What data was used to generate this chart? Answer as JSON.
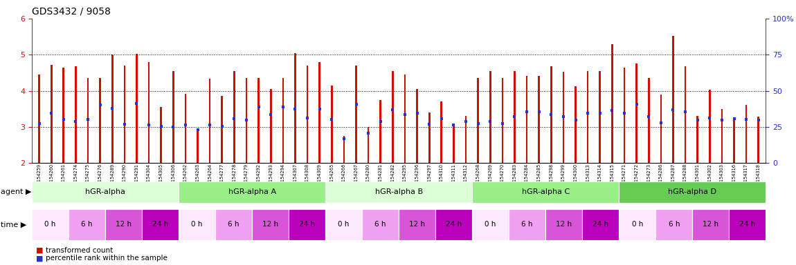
{
  "title": "GDS3432 / 9058",
  "bar_bottom": 2.0,
  "ylim": [
    2.0,
    6.0
  ],
  "yticks": [
    2,
    3,
    4,
    5,
    6
  ],
  "right_yticks_pct": [
    0,
    25,
    50,
    75,
    100
  ],
  "right_ytick_labels": [
    "0",
    "25",
    "50",
    "75",
    "100%"
  ],
  "samples": [
    "GSM154259",
    "GSM154260",
    "GSM154261",
    "GSM154274",
    "GSM154275",
    "GSM154276",
    "GSM154289",
    "GSM154290",
    "GSM154291",
    "GSM154304",
    "GSM154305",
    "GSM154306",
    "GSM154262",
    "GSM154263",
    "GSM154264",
    "GSM154277",
    "GSM154278",
    "GSM154279",
    "GSM154292",
    "GSM154293",
    "GSM154294",
    "GSM154307",
    "GSM154308",
    "GSM154309",
    "GSM154265",
    "GSM154266",
    "GSM154267",
    "GSM154280",
    "GSM154281",
    "GSM154282",
    "GSM154295",
    "GSM154296",
    "GSM154297",
    "GSM154310",
    "GSM154311",
    "GSM154312",
    "GSM154268",
    "GSM154269",
    "GSM154270",
    "GSM154283",
    "GSM154284",
    "GSM154285",
    "GSM154298",
    "GSM154299",
    "GSM154300",
    "GSM154313",
    "GSM154314",
    "GSM154315",
    "GSM154271",
    "GSM154272",
    "GSM154273",
    "GSM154286",
    "GSM154287",
    "GSM154288",
    "GSM154301",
    "GSM154302",
    "GSM154303",
    "GSM154316",
    "GSM154317",
    "GSM154318"
  ],
  "bar_heights": [
    4.45,
    4.72,
    4.65,
    4.68,
    4.35,
    4.35,
    5.0,
    4.7,
    5.02,
    4.8,
    3.55,
    4.55,
    3.92,
    2.92,
    4.33,
    3.85,
    4.55,
    4.35,
    4.35,
    4.05,
    4.35,
    5.05,
    4.7,
    4.8,
    4.15,
    2.75,
    4.7,
    3.0,
    3.75,
    4.55,
    4.45,
    4.05,
    3.4,
    3.7,
    3.1,
    3.3,
    4.35,
    4.55,
    4.35,
    4.55,
    4.42,
    4.42,
    4.68,
    4.52,
    4.12,
    4.55,
    4.55,
    5.3,
    4.65,
    4.75,
    4.35,
    3.9,
    5.52,
    4.68,
    3.3,
    4.02,
    3.5,
    3.25,
    3.6,
    3.28
  ],
  "blue_dots": [
    3.1,
    3.38,
    3.2,
    3.15,
    3.2,
    3.6,
    3.52,
    3.08,
    3.65,
    3.05,
    3.02,
    3.0,
    3.05,
    2.92,
    3.05,
    3.02,
    3.22,
    3.18,
    3.55,
    3.35,
    3.55,
    3.5,
    3.25,
    3.5,
    3.2,
    2.68,
    3.62,
    2.82,
    3.15,
    3.48,
    3.35,
    3.38,
    3.08,
    3.22,
    3.05,
    3.15,
    3.1,
    3.15,
    3.1,
    3.28,
    3.42,
    3.42,
    3.35,
    3.28,
    3.18,
    3.38,
    3.38,
    3.45,
    3.38,
    3.62,
    3.28,
    3.12,
    3.48,
    3.42,
    3.18,
    3.25,
    3.18,
    3.22,
    3.2,
    3.18
  ],
  "agents": [
    {
      "label": "hGR-alpha",
      "start": 0,
      "end": 12,
      "color": "#ddffd8"
    },
    {
      "label": "hGR-alpha A",
      "start": 12,
      "end": 24,
      "color": "#99ee88"
    },
    {
      "label": "hGR-alpha B",
      "start": 24,
      "end": 36,
      "color": "#ddffd8"
    },
    {
      "label": "hGR-alpha C",
      "start": 36,
      "end": 48,
      "color": "#99ee88"
    },
    {
      "label": "hGR-alpha D",
      "start": 48,
      "end": 60,
      "color": "#66cc55"
    }
  ],
  "times": [
    {
      "label": "0 h",
      "shade": 0
    },
    {
      "label": "6 h",
      "shade": 1
    },
    {
      "label": "12 h",
      "shade": 2
    },
    {
      "label": "24 h",
      "shade": 3
    },
    {
      "label": "0 h",
      "shade": 0
    },
    {
      "label": "6 h",
      "shade": 1
    },
    {
      "label": "12 h",
      "shade": 2
    },
    {
      "label": "24 h",
      "shade": 3
    },
    {
      "label": "0 h",
      "shade": 0
    },
    {
      "label": "6 h",
      "shade": 1
    },
    {
      "label": "12 h",
      "shade": 2
    },
    {
      "label": "24 h",
      "shade": 3
    },
    {
      "label": "0 h",
      "shade": 0
    },
    {
      "label": "6 h",
      "shade": 1
    },
    {
      "label": "12 h",
      "shade": 2
    },
    {
      "label": "24 h",
      "shade": 3
    },
    {
      "label": "0 h",
      "shade": 0
    },
    {
      "label": "6 h",
      "shade": 1
    },
    {
      "label": "12 h",
      "shade": 2
    },
    {
      "label": "24 h",
      "shade": 3
    }
  ],
  "time_colors": [
    "#fce8fc",
    "#f0a0f0",
    "#d855d8",
    "#bb00bb"
  ],
  "bar_color": "#cc1100",
  "dot_color": "#2233cc",
  "bg_color": "#ffffff",
  "label_color_left": "#cc1100",
  "label_color_right": "#2233cc"
}
